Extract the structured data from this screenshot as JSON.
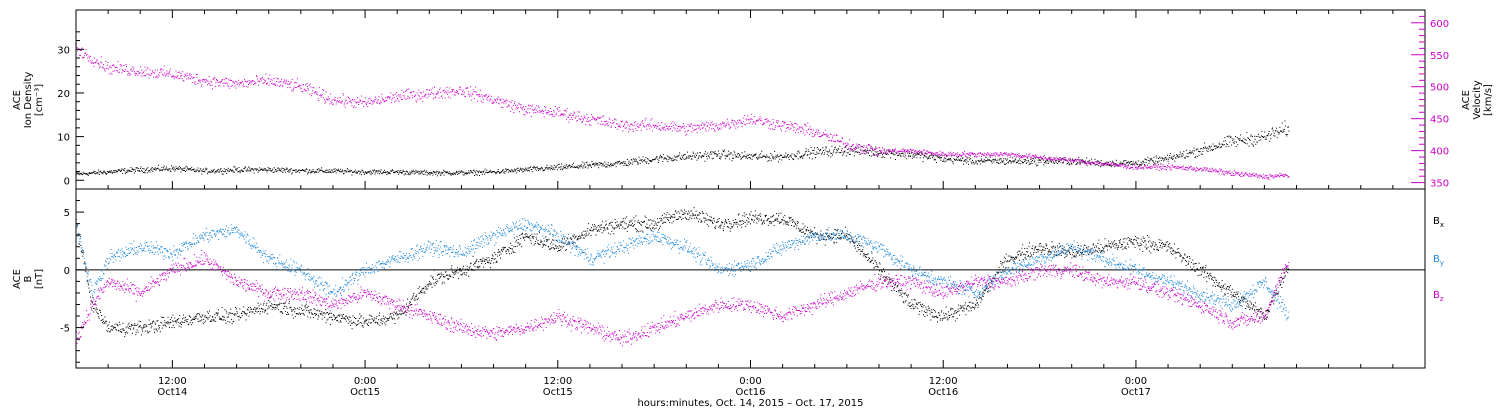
{
  "chart_data": [
    {
      "type": "scatter",
      "panel": "top",
      "x_range": [
        "2015-10-14 06:00",
        "2015-10-17 18:00"
      ],
      "ylabel_left": [
        "ACE",
        "Ion Density",
        "[cm⁻³]"
      ],
      "ylim_left": [
        -2,
        39
      ],
      "yticks_left": [
        0,
        10,
        20,
        30
      ],
      "ylabel_right": [
        "ACE",
        "Velocity",
        "[km/s]"
      ],
      "ylim_right": [
        340,
        620
      ],
      "yticks_right": [
        350,
        400,
        450,
        500,
        550,
        600
      ],
      "series": [
        {
          "key": "density",
          "axis": "left",
          "color": "#000000",
          "x_hours": [
            0,
            2,
            4,
            6,
            8,
            10,
            12,
            14,
            16,
            18,
            20,
            22,
            24,
            26,
            28,
            30,
            32,
            34,
            36,
            38,
            40,
            42,
            44,
            46,
            48,
            50,
            52,
            54,
            56,
            58,
            60,
            62,
            64,
            66,
            68,
            70,
            72,
            74,
            75.5
          ],
          "values": [
            1.5,
            2,
            2.5,
            2.8,
            2.2,
            2.5,
            2.5,
            2.3,
            2.2,
            2,
            2,
            1.8,
            1.8,
            2,
            2.5,
            3,
            3.5,
            4,
            5,
            5.5,
            6,
            5.5,
            5.5,
            6.5,
            7,
            6.5,
            6,
            5,
            4.5,
            4.5,
            4.5,
            4.5,
            4,
            4,
            5,
            7,
            9,
            10,
            12
          ]
        },
        {
          "key": "velocity",
          "axis": "right",
          "color": "#cc00cc",
          "x_hours": [
            0,
            2,
            4,
            6,
            8,
            10,
            12,
            14,
            16,
            18,
            20,
            22,
            24,
            26,
            28,
            30,
            32,
            34,
            36,
            38,
            40,
            42,
            44,
            46,
            48,
            50,
            52,
            54,
            56,
            58,
            60,
            62,
            64,
            66,
            68,
            70,
            72,
            74,
            75.5
          ],
          "values": [
            560,
            530,
            525,
            520,
            510,
            505,
            510,
            500,
            480,
            475,
            485,
            490,
            495,
            480,
            465,
            460,
            450,
            440,
            440,
            435,
            440,
            450,
            440,
            430,
            410,
            400,
            400,
            395,
            395,
            395,
            390,
            385,
            380,
            375,
            375,
            372,
            365,
            360,
            362
          ]
        }
      ]
    },
    {
      "type": "scatter",
      "panel": "bottom",
      "ylabel": [
        "ACE",
        "B",
        "[nT]"
      ],
      "ylim": [
        -8.5,
        7
      ],
      "yticks": [
        -5,
        0,
        5
      ],
      "x_ticks": [
        {
          "hour": 6,
          "time": "12:00",
          "date": "Oct14"
        },
        {
          "hour": 18,
          "time": "0:00",
          "date": "Oct15"
        },
        {
          "hour": 30,
          "time": "12:00",
          "date": "Oct15"
        },
        {
          "hour": 42,
          "time": "0:00",
          "date": "Oct16"
        },
        {
          "hour": 54,
          "time": "12:00",
          "date": "Oct16"
        },
        {
          "hour": 66,
          "time": "0:00",
          "date": "Oct17"
        }
      ],
      "xlabel": "hours:minutes, Oct. 14, 2015 – Oct. 17, 2015",
      "series": [
        {
          "name": "Bx",
          "color": "#000000",
          "x_hours": [
            0,
            1,
            2,
            4,
            6,
            8,
            10,
            12,
            14,
            16,
            18,
            20,
            22,
            24,
            26,
            28,
            30,
            32,
            34,
            36,
            38,
            40,
            42,
            44,
            46,
            48,
            50,
            52,
            54,
            56,
            58,
            60,
            62,
            64,
            66,
            68,
            70,
            72,
            74,
            75.5
          ],
          "values": [
            4,
            -3,
            -5,
            -5,
            -4.5,
            -4,
            -4,
            -3,
            -3.5,
            -4,
            -4.5,
            -4,
            -1,
            0,
            1,
            3,
            2,
            3.5,
            4,
            4,
            5,
            4,
            4.5,
            4.5,
            3,
            3,
            0,
            -3,
            -4,
            -3,
            1,
            2,
            1.5,
            2,
            2.5,
            2,
            0,
            -2,
            -4,
            0.5
          ]
        },
        {
          "name": "By",
          "color": "#1f88dd",
          "x_hours": [
            0,
            1,
            2,
            4,
            6,
            8,
            10,
            12,
            14,
            16,
            18,
            20,
            22,
            24,
            26,
            28,
            30,
            32,
            34,
            36,
            38,
            40,
            42,
            44,
            46,
            48,
            50,
            52,
            54,
            56,
            58,
            60,
            62,
            64,
            66,
            68,
            70,
            72,
            74,
            75.5
          ],
          "values": [
            4,
            -2,
            1,
            2,
            1.5,
            3,
            3.5,
            1,
            0,
            -2,
            0,
            1,
            2,
            1.5,
            3,
            4,
            3,
            1,
            2,
            3,
            2,
            0,
            0.5,
            2,
            3,
            3,
            2,
            0,
            -1,
            -2,
            0,
            1,
            2,
            1,
            0,
            -1,
            -2,
            -3,
            -1,
            -4
          ]
        },
        {
          "name": "Bz",
          "color": "#cc00cc",
          "x_hours": [
            0,
            1,
            2,
            4,
            6,
            8,
            10,
            12,
            14,
            16,
            18,
            20,
            22,
            24,
            26,
            28,
            30,
            32,
            34,
            36,
            38,
            40,
            42,
            44,
            46,
            48,
            50,
            52,
            54,
            56,
            58,
            60,
            62,
            64,
            66,
            68,
            70,
            72,
            74,
            75.5
          ],
          "values": [
            -6,
            -3,
            -1,
            -2,
            0,
            1,
            -1,
            -2,
            -2,
            -3,
            -2,
            -3,
            -4,
            -5,
            -5.5,
            -5,
            -4,
            -5,
            -6,
            -5,
            -4,
            -3,
            -3,
            -4,
            -3,
            -2,
            -1,
            -1,
            -2,
            -1,
            -1,
            0,
            0,
            -1,
            -1,
            -2,
            -3,
            -4.5,
            -4,
            1
          ]
        }
      ]
    }
  ]
}
